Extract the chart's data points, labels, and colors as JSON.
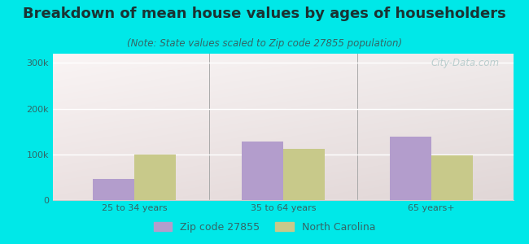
{
  "title": "Breakdown of mean house values by ages of householders",
  "subtitle": "(Note: State values scaled to Zip code 27855 population)",
  "categories": [
    "25 to 34 years",
    "35 to 64 years",
    "65 years+"
  ],
  "zip_values": [
    47000,
    128000,
    138000
  ],
  "nc_values": [
    100000,
    112000,
    97000
  ],
  "zip_color": "#b39dcc",
  "nc_color": "#c8c98a",
  "background_outer": "#00e8e8",
  "background_inner_top_left": "#c8e8c0",
  "background_inner_top_right": "#e8f0e8",
  "background_inner_bottom": "#f8fff8",
  "yticks": [
    0,
    100000,
    200000,
    300000
  ],
  "ytick_labels": [
    "0",
    "100k",
    "200k",
    "300k"
  ],
  "ylim": [
    0,
    320000
  ],
  "legend_labels": [
    "Zip code 27855",
    "North Carolina"
  ],
  "bar_width": 0.28,
  "watermark": "City-Data.com",
  "title_fontsize": 13,
  "subtitle_fontsize": 8.5,
  "tick_fontsize": 8,
  "legend_fontsize": 9
}
